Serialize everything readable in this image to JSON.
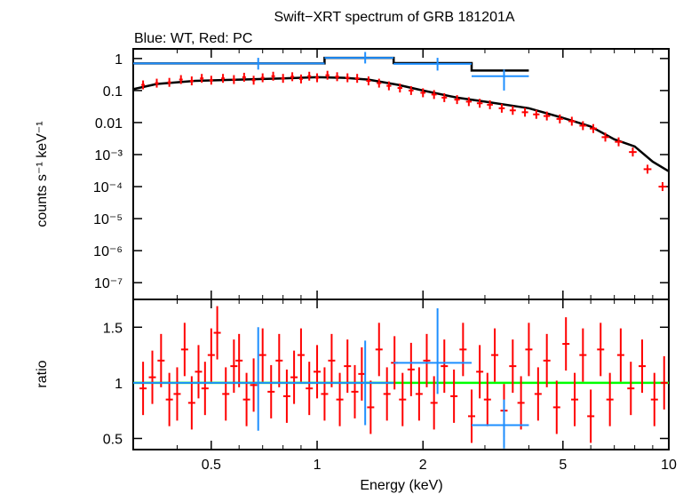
{
  "chart_data": [
    {
      "type": "scatter",
      "panel": "spectrum",
      "title": "Swift−XRT spectrum of GRB 181201A",
      "subtitle": "Blue: WT, Red: PC",
      "xlabel": "",
      "ylabel": "counts s⁻¹ keV⁻¹",
      "xscale": "log",
      "yscale": "log",
      "xlim": [
        0.3,
        10
      ],
      "ylim": [
        3e-08,
        2
      ],
      "y_ticks": [
        {
          "v": 1,
          "label": "1"
        },
        {
          "v": 0.1,
          "label": "0.1"
        },
        {
          "v": 0.01,
          "label": "0.01"
        },
        {
          "v": 0.001,
          "label": "10⁻³"
        },
        {
          "v": 0.0001,
          "label": "10⁻⁴"
        },
        {
          "v": 1e-05,
          "label": "10⁻⁵"
        },
        {
          "v": 1e-06,
          "label": "10⁻⁶"
        },
        {
          "v": 1e-07,
          "label": "10⁻⁷"
        }
      ],
      "series": [
        {
          "label": "WT",
          "color": "#1e8fff",
          "points": [
            {
              "xlo": 0.3,
              "xhi": 1.05,
              "x": 0.68,
              "y": 0.7,
              "ylo": 0.45,
              "yhi": 1.05
            },
            {
              "xlo": 1.05,
              "xhi": 1.65,
              "x": 1.37,
              "y": 1.05,
              "ylo": 0.7,
              "yhi": 1.6
            },
            {
              "xlo": 1.65,
              "xhi": 2.75,
              "x": 2.2,
              "y": 0.68,
              "ylo": 0.42,
              "yhi": 1.05
            },
            {
              "xlo": 2.75,
              "xhi": 4.0,
              "x": 3.4,
              "y": 0.28,
              "ylo": 0.1,
              "yhi": 0.45
            }
          ]
        },
        {
          "label": "PC",
          "color": "#ff0000",
          "points": [
            {
              "x": 0.32,
              "y": 0.15
            },
            {
              "x": 0.35,
              "y": 0.17
            },
            {
              "x": 0.38,
              "y": 0.18
            },
            {
              "x": 0.41,
              "y": 0.22
            },
            {
              "x": 0.44,
              "y": 0.2
            },
            {
              "x": 0.47,
              "y": 0.24
            },
            {
              "x": 0.5,
              "y": 0.21
            },
            {
              "x": 0.54,
              "y": 0.24
            },
            {
              "x": 0.58,
              "y": 0.22
            },
            {
              "x": 0.62,
              "y": 0.26
            },
            {
              "x": 0.66,
              "y": 0.21
            },
            {
              "x": 0.7,
              "y": 0.25
            },
            {
              "x": 0.75,
              "y": 0.28
            },
            {
              "x": 0.8,
              "y": 0.24
            },
            {
              "x": 0.85,
              "y": 0.27
            },
            {
              "x": 0.9,
              "y": 0.23
            },
            {
              "x": 0.95,
              "y": 0.28
            },
            {
              "x": 1.0,
              "y": 0.25
            },
            {
              "x": 1.07,
              "y": 0.3
            },
            {
              "x": 1.14,
              "y": 0.27
            },
            {
              "x": 1.22,
              "y": 0.25
            },
            {
              "x": 1.3,
              "y": 0.24
            },
            {
              "x": 1.4,
              "y": 0.2
            },
            {
              "x": 1.5,
              "y": 0.17
            },
            {
              "x": 1.6,
              "y": 0.14
            },
            {
              "x": 1.72,
              "y": 0.12
            },
            {
              "x": 1.85,
              "y": 0.1
            },
            {
              "x": 2.0,
              "y": 0.085
            },
            {
              "x": 2.15,
              "y": 0.075
            },
            {
              "x": 2.3,
              "y": 0.06
            },
            {
              "x": 2.5,
              "y": 0.052
            },
            {
              "x": 2.7,
              "y": 0.045
            },
            {
              "x": 2.9,
              "y": 0.04
            },
            {
              "x": 3.1,
              "y": 0.036
            },
            {
              "x": 3.35,
              "y": 0.028
            },
            {
              "x": 3.6,
              "y": 0.024
            },
            {
              "x": 3.9,
              "y": 0.021
            },
            {
              "x": 4.2,
              "y": 0.018
            },
            {
              "x": 4.5,
              "y": 0.016
            },
            {
              "x": 4.9,
              "y": 0.013
            },
            {
              "x": 5.3,
              "y": 0.011
            },
            {
              "x": 5.7,
              "y": 0.008
            },
            {
              "x": 6.1,
              "y": 0.0065
            },
            {
              "x": 6.6,
              "y": 0.0035
            },
            {
              "x": 7.2,
              "y": 0.0025
            },
            {
              "x": 7.9,
              "y": 0.0012
            },
            {
              "x": 8.7,
              "y": 0.00035
            },
            {
              "x": 9.6,
              "y": 0.0001
            }
          ]
        }
      ],
      "model": {
        "label": "model",
        "color": "#000000",
        "pc_curve": [
          {
            "x": 0.3,
            "y": 0.11
          },
          {
            "x": 0.35,
            "y": 0.16
          },
          {
            "x": 0.45,
            "y": 0.2
          },
          {
            "x": 0.6,
            "y": 0.22
          },
          {
            "x": 0.8,
            "y": 0.24
          },
          {
            "x": 1.0,
            "y": 0.26
          },
          {
            "x": 1.2,
            "y": 0.25
          },
          {
            "x": 1.4,
            "y": 0.22
          },
          {
            "x": 1.7,
            "y": 0.15
          },
          {
            "x": 2.0,
            "y": 0.1
          },
          {
            "x": 2.5,
            "y": 0.06
          },
          {
            "x": 3.0,
            "y": 0.045
          },
          {
            "x": 4.0,
            "y": 0.028
          },
          {
            "x": 5.0,
            "y": 0.014
          },
          {
            "x": 6.0,
            "y": 0.0075
          },
          {
            "x": 7.0,
            "y": 0.003
          },
          {
            "x": 8.0,
            "y": 0.0018
          },
          {
            "x": 9.0,
            "y": 0.0006
          },
          {
            "x": 10.0,
            "y": 0.0003
          }
        ],
        "wt_steps": [
          {
            "xlo": 0.3,
            "xhi": 1.05,
            "y": 0.7
          },
          {
            "xlo": 1.05,
            "xhi": 1.65,
            "y": 1.05
          },
          {
            "xlo": 1.65,
            "xhi": 2.75,
            "y": 0.72
          },
          {
            "xlo": 2.75,
            "xhi": 4.0,
            "y": 0.42
          }
        ]
      }
    },
    {
      "type": "scatter",
      "panel": "ratio",
      "xlabel": "Energy (keV)",
      "ylabel": "ratio",
      "xscale": "log",
      "yscale": "linear",
      "xlim": [
        0.3,
        10
      ],
      "ylim": [
        0.4,
        1.75
      ],
      "x_ticks": [
        {
          "v": 0.5,
          "label": "0.5"
        },
        {
          "v": 1,
          "label": "1"
        },
        {
          "v": 2,
          "label": "2"
        },
        {
          "v": 5,
          "label": "5"
        },
        {
          "v": 10,
          "label": "10"
        }
      ],
      "y_ticks": [
        {
          "v": 0.5,
          "label": "0.5"
        },
        {
          "v": 1,
          "label": "1"
        },
        {
          "v": 1.5,
          "label": "1.5"
        }
      ],
      "reference_line": {
        "y": 1,
        "color": "#00ff00"
      },
      "series": [
        {
          "label": "WT",
          "color": "#1e8fff",
          "points": [
            {
              "xlo": 0.3,
              "xhi": 1.05,
              "x": 0.68,
              "y": 1.0,
              "ylo": 0.57,
              "yhi": 1.5
            },
            {
              "xlo": 1.05,
              "xhi": 1.65,
              "x": 1.37,
              "y": 1.0,
              "ylo": 0.62,
              "yhi": 1.38
            },
            {
              "xlo": 1.65,
              "xhi": 2.75,
              "x": 2.2,
              "y": 1.18,
              "ylo": 0.9,
              "yhi": 1.67
            },
            {
              "xlo": 2.75,
              "xhi": 4.0,
              "x": 3.4,
              "y": 0.62,
              "ylo": 0.41,
              "yhi": 0.85
            }
          ]
        },
        {
          "label": "PC",
          "color": "#ff0000",
          "points": [
            {
              "x": 0.32,
              "y": 0.95
            },
            {
              "x": 0.34,
              "y": 1.05
            },
            {
              "x": 0.36,
              "y": 1.2
            },
            {
              "x": 0.38,
              "y": 0.85
            },
            {
              "x": 0.4,
              "y": 0.9
            },
            {
              "x": 0.42,
              "y": 1.3
            },
            {
              "x": 0.44,
              "y": 0.82
            },
            {
              "x": 0.46,
              "y": 1.1
            },
            {
              "x": 0.48,
              "y": 0.95
            },
            {
              "x": 0.5,
              "y": 1.25
            },
            {
              "x": 0.52,
              "y": 1.45
            },
            {
              "x": 0.55,
              "y": 0.9
            },
            {
              "x": 0.58,
              "y": 1.15
            },
            {
              "x": 0.6,
              "y": 1.2
            },
            {
              "x": 0.63,
              "y": 0.85
            },
            {
              "x": 0.66,
              "y": 0.98
            },
            {
              "x": 0.7,
              "y": 1.25
            },
            {
              "x": 0.74,
              "y": 0.92
            },
            {
              "x": 0.78,
              "y": 1.2
            },
            {
              "x": 0.82,
              "y": 0.88
            },
            {
              "x": 0.86,
              "y": 1.05
            },
            {
              "x": 0.9,
              "y": 1.25
            },
            {
              "x": 0.95,
              "y": 0.95
            },
            {
              "x": 1.0,
              "y": 1.1
            },
            {
              "x": 1.05,
              "y": 0.9
            },
            {
              "x": 1.1,
              "y": 1.2
            },
            {
              "x": 1.16,
              "y": 0.85
            },
            {
              "x": 1.22,
              "y": 1.15
            },
            {
              "x": 1.28,
              "y": 0.92
            },
            {
              "x": 1.34,
              "y": 1.08
            },
            {
              "x": 1.42,
              "y": 0.78
            },
            {
              "x": 1.5,
              "y": 1.3
            },
            {
              "x": 1.58,
              "y": 0.9
            },
            {
              "x": 1.66,
              "y": 1.18
            },
            {
              "x": 1.75,
              "y": 0.85
            },
            {
              "x": 1.85,
              "y": 1.12
            },
            {
              "x": 1.95,
              "y": 0.9
            },
            {
              "x": 2.05,
              "y": 1.2
            },
            {
              "x": 2.15,
              "y": 0.82
            },
            {
              "x": 2.3,
              "y": 1.15
            },
            {
              "x": 2.45,
              "y": 0.88
            },
            {
              "x": 2.6,
              "y": 1.3
            },
            {
              "x": 2.75,
              "y": 0.7
            },
            {
              "x": 2.9,
              "y": 1.1
            },
            {
              "x": 3.05,
              "y": 0.85
            },
            {
              "x": 3.2,
              "y": 1.25
            },
            {
              "x": 3.4,
              "y": 0.75
            },
            {
              "x": 3.6,
              "y": 1.15
            },
            {
              "x": 3.8,
              "y": 0.82
            },
            {
              "x": 4.0,
              "y": 1.3
            },
            {
              "x": 4.25,
              "y": 0.9
            },
            {
              "x": 4.5,
              "y": 1.2
            },
            {
              "x": 4.8,
              "y": 0.78
            },
            {
              "x": 5.1,
              "y": 1.35
            },
            {
              "x": 5.4,
              "y": 0.85
            },
            {
              "x": 5.7,
              "y": 1.25
            },
            {
              "x": 6.0,
              "y": 0.7
            },
            {
              "x": 6.4,
              "y": 1.3
            },
            {
              "x": 6.8,
              "y": 0.85
            },
            {
              "x": 7.3,
              "y": 1.25
            },
            {
              "x": 7.8,
              "y": 0.95
            },
            {
              "x": 8.4,
              "y": 1.15
            },
            {
              "x": 9.1,
              "y": 0.85
            },
            {
              "x": 9.7,
              "y": 1.0
            }
          ]
        }
      ]
    }
  ]
}
